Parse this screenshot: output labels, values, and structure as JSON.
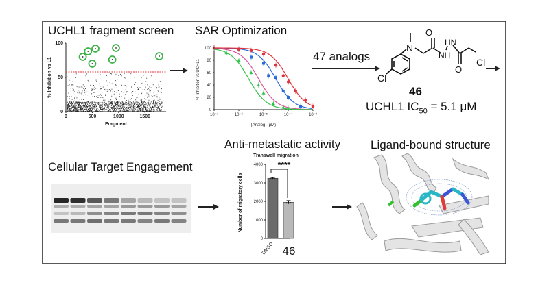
{
  "titles": {
    "screen": "UCHL1 fragment screen",
    "sar": "SAR Optimization",
    "cellular": "Cellular Target Engagement",
    "metastatic": "Anti-metastatic activity",
    "structure": "Ligand-bound structure"
  },
  "analogs_label": "47 analogs",
  "compound": {
    "number": "46",
    "ic50_prefix": "UCHL1 IC",
    "ic50_sub": "50",
    "ic50_value": " = 5.1 μM",
    "atom_cl_left": "Cl",
    "atom_cl_right": "Cl",
    "atom_n": "N",
    "atom_nh": "NH",
    "atom_hn": "HN",
    "atom_o": "O"
  },
  "chart_data": [
    {
      "type": "scatter",
      "title": "",
      "xlabel": "Fragment",
      "ylabel": "% Inhibition vs L1",
      "xlim": [
        0,
        1900
      ],
      "ylim": [
        0,
        100
      ],
      "x_ticks": [
        "0",
        "500",
        "1000",
        "1500"
      ],
      "y_ticks": [
        "0",
        "50",
        "100"
      ],
      "threshold": 58,
      "hits": [
        {
          "x": 420,
          "y": 88
        },
        {
          "x": 560,
          "y": 92
        },
        {
          "x": 320,
          "y": 80
        },
        {
          "x": 500,
          "y": 70
        },
        {
          "x": 950,
          "y": 93
        },
        {
          "x": 880,
          "y": 76
        },
        {
          "x": 1770,
          "y": 81
        }
      ]
    },
    {
      "type": "line",
      "title": "",
      "xlabel": "[Analog] (μM)",
      "ylabel": "% Inhibition vs UCHL1",
      "x_ticks": [
        "10⁻⁷",
        "10⁻⁶",
        "10⁻⁵",
        "10⁻⁴",
        "10⁻³"
      ],
      "y_ticks": [
        "0",
        "20",
        "40",
        "60",
        "80",
        "100"
      ],
      "ylim": [
        0,
        100
      ],
      "series": [
        {
          "name": "magenta",
          "color": "#d94f9b",
          "log_ic50": -5.2,
          "points": []
        },
        {
          "name": "green",
          "color": "#33c24a",
          "log_ic50": -5.6,
          "points": [
            [
              -7,
              100
            ],
            [
              -6.5,
              92
            ],
            [
              -6,
              80
            ],
            [
              -5.5,
              60
            ],
            [
              -5.2,
              40
            ],
            [
              -5,
              27
            ],
            [
              -4.6,
              10
            ],
            [
              -4.2,
              4
            ],
            [
              -4,
              2
            ]
          ]
        },
        {
          "name": "blue",
          "color": "#2a6ad8",
          "log_ic50": -4.5,
          "points": [
            [
              -7,
              100
            ],
            [
              -6,
              98
            ],
            [
              -5.5,
              85
            ],
            [
              -5,
              75
            ],
            [
              -4.8,
              55
            ],
            [
              -4.5,
              52
            ],
            [
              -4.2,
              30
            ],
            [
              -4,
              20
            ],
            [
              -3.5,
              5
            ]
          ]
        },
        {
          "name": "red",
          "color": "#e0313b",
          "log_ic50": -4.0,
          "points": [
            [
              -7,
              100
            ],
            [
              -6,
              98
            ],
            [
              -5.5,
              96
            ],
            [
              -5,
              90
            ],
            [
              -4.5,
              72
            ],
            [
              -4.2,
              55
            ],
            [
              -4,
              45
            ],
            [
              -3.7,
              30
            ],
            [
              -3.3,
              15
            ],
            [
              -3,
              5
            ]
          ]
        }
      ]
    },
    {
      "type": "bar",
      "title": "Transwell migration",
      "xlabel": "",
      "ylabel": "Number of migratory cells",
      "categories": [
        "DMSO",
        "46"
      ],
      "values": [
        3250,
        1950
      ],
      "errors": [
        40,
        90
      ],
      "ylim": [
        0,
        4000
      ],
      "y_ticks": [
        "0",
        "1000",
        "2000",
        "3000",
        "4000"
      ],
      "significance": "****",
      "colors": [
        "#6b6b6b",
        "#b9b9b9"
      ]
    }
  ]
}
